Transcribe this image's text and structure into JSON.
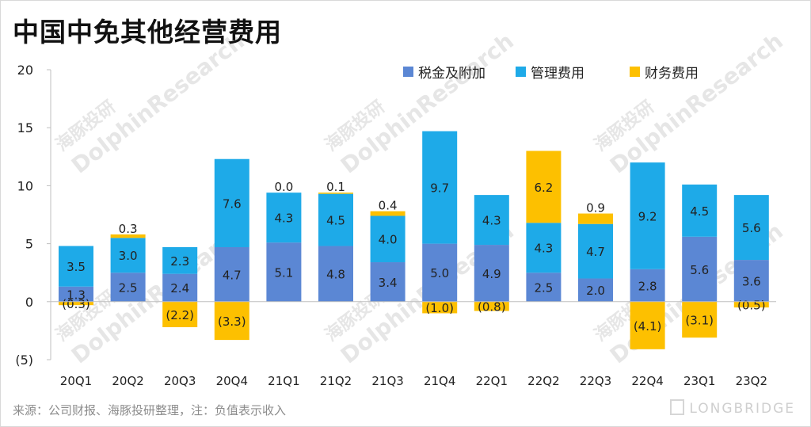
{
  "title": "中国中免其他经营费用",
  "source": "来源：公司财报、海豚投研整理，注：负值表示收入",
  "brand": "LONGBRIDGE",
  "watermark": {
    "en": "DolphinResearch",
    "cn": "海豚投研"
  },
  "colors": {
    "tax": "#5b87d4",
    "admin": "#1eaae8",
    "finance": "#fdc000",
    "axis": "#bfbfbf",
    "label": "#222222"
  },
  "chart_data": {
    "type": "bar",
    "stacked": true,
    "categories": [
      "20Q1",
      "20Q2",
      "20Q3",
      "20Q4",
      "21Q1",
      "21Q2",
      "21Q3",
      "21Q4",
      "22Q1",
      "22Q2",
      "22Q3",
      "22Q4",
      "23Q1",
      "23Q2"
    ],
    "series": [
      {
        "name": "税金及附加",
        "values": [
          1.3,
          2.5,
          2.4,
          4.7,
          5.1,
          4.8,
          3.4,
          5.0,
          4.9,
          2.5,
          2.0,
          2.8,
          5.6,
          3.6
        ],
        "labels": [
          "1.3",
          "2.5",
          "2.4",
          "4.7",
          "5.1",
          "4.8",
          "3.4",
          "5.0",
          "4.9",
          "2.5",
          "2.0",
          "2.8",
          "5.6",
          "3.6"
        ]
      },
      {
        "name": "管理费用",
        "values": [
          3.5,
          3.0,
          2.3,
          7.6,
          4.3,
          4.5,
          4.0,
          9.7,
          4.3,
          4.3,
          4.7,
          9.2,
          4.5,
          5.6
        ],
        "labels": [
          "3.5",
          "3.0",
          "2.3",
          "7.6",
          "4.3",
          "4.5",
          "4.0",
          "9.7",
          "4.3",
          "4.3",
          "4.7",
          "9.2",
          "4.5",
          "5.6"
        ]
      },
      {
        "name": "财务费用",
        "values": [
          -0.3,
          0.3,
          -2.2,
          -3.3,
          0.0,
          0.1,
          0.4,
          -1.0,
          -0.8,
          6.2,
          0.9,
          -4.1,
          -3.1,
          -0.5
        ],
        "labels": [
          "(0.3)",
          "0.3",
          "(2.2)",
          "(3.3)",
          "0.0",
          "0.1",
          "0.4",
          "(1.0)",
          "(0.8)",
          "6.2",
          "0.9",
          "(4.1)",
          "(3.1)",
          "(0.5)"
        ]
      }
    ],
    "yticks": [
      "20",
      "15",
      "10",
      "5",
      "0",
      "(5)"
    ],
    "ylim": [
      -5,
      20
    ],
    "legend_position": "top-right"
  }
}
